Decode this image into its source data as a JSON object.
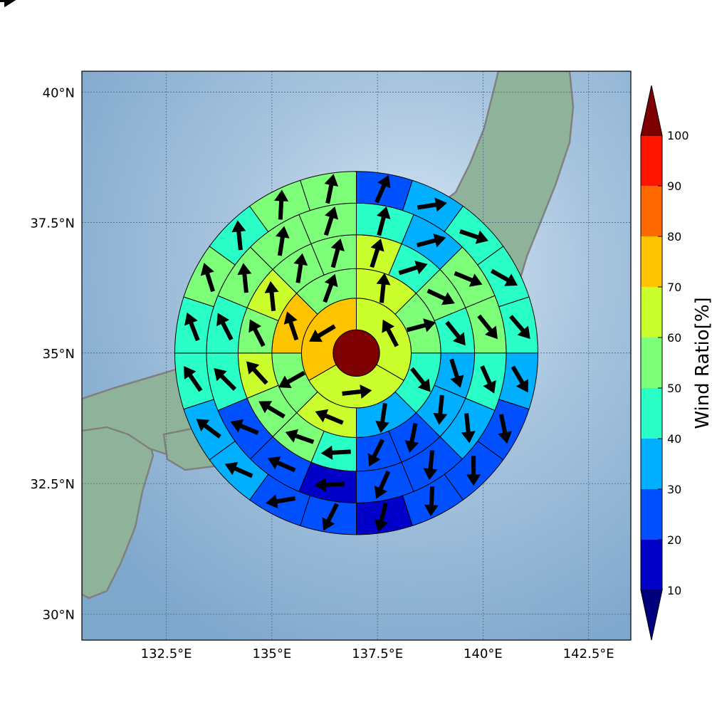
{
  "map": {
    "lon_range": [
      130.5,
      143.5
    ],
    "lat_range": [
      29.5,
      40.4
    ],
    "lon_ticks": [
      {
        "value": 132.5,
        "label": "132.5°E"
      },
      {
        "value": 135.0,
        "label": "135°E"
      },
      {
        "value": 137.5,
        "label": "137.5°E"
      },
      {
        "value": 140.0,
        "label": "140°E"
      },
      {
        "value": 142.5,
        "label": "142.5°E"
      }
    ],
    "lat_ticks": [
      {
        "value": 30.0,
        "label": "30°N"
      },
      {
        "value": 32.5,
        "label": "32.5°N"
      },
      {
        "value": 35.0,
        "label": "35°N"
      },
      {
        "value": 37.5,
        "label": "37.5°N"
      },
      {
        "value": 40.0,
        "label": "40°N"
      }
    ],
    "center": {
      "lon": 137.0,
      "lat": 35.0
    },
    "ring_radii_deg": [
      0.55,
      1.3,
      2.0,
      2.8,
      3.55,
      4.3
    ],
    "center_value": 100,
    "sector_start_deg": 90,
    "sector_direction": "clockwise",
    "rings": [
      {
        "values": [
          65,
          62,
          75
        ],
        "arrows": [
          [
            -0.5,
            0.95
          ],
          [
            0.9,
            0.1
          ],
          [
            -0.5,
            -0.3
          ]
        ]
      },
      {
        "values": [
          65,
          55,
          42,
          33,
          62,
          50,
          75,
          50
        ],
        "arrows": [
          [
            0.1,
            1
          ],
          [
            0.95,
            0.25
          ],
          [
            0.6,
            -0.75
          ],
          [
            -0.15,
            -1
          ],
          [
            -0.85,
            0.35
          ],
          [
            -0.8,
            -0.45
          ],
          [
            -0.3,
            0.9
          ],
          [
            0.35,
            0.95
          ]
        ]
      },
      {
        "values": [
          60,
          42,
          55,
          40,
          35,
          33,
          25,
          22,
          40,
          55,
          58,
          62,
          50,
          62,
          58,
          55
        ],
        "arrows": [
          [
            0.3,
            0.95
          ],
          [
            0.95,
            0.3
          ],
          [
            0.85,
            -0.4
          ],
          [
            0.6,
            -0.75
          ],
          [
            0.3,
            -0.95
          ],
          [
            -0.1,
            -1
          ],
          [
            -0.2,
            -0.98
          ],
          [
            -0.45,
            -0.89
          ],
          [
            -0.95,
            -0.05
          ],
          [
            -0.85,
            0.3
          ],
          [
            -0.75,
            0.45
          ],
          [
            -0.55,
            0.6
          ],
          [
            -0.45,
            0.88
          ],
          [
            -0.1,
            0.99
          ],
          [
            0.15,
            0.98
          ],
          [
            0.25,
            0.95
          ]
        ]
      },
      {
        "values": [
          40,
          35,
          55,
          52,
          42,
          38,
          25,
          20,
          18,
          22,
          22,
          40,
          45,
          50,
          55,
          52
        ],
        "arrows": [
          [
            0.25,
            0.95
          ],
          [
            0.95,
            0.25
          ],
          [
            0.85,
            -0.35
          ],
          [
            0.6,
            -0.75
          ],
          [
            0.4,
            -0.9
          ],
          [
            0.1,
            -0.99
          ],
          [
            -0.1,
            -0.99
          ],
          [
            -0.4,
            -0.9
          ],
          [
            -0.95,
            -0.05
          ],
          [
            -0.9,
            0.4
          ],
          [
            -0.85,
            0.35
          ],
          [
            -0.55,
            0.55
          ],
          [
            -0.45,
            0.88
          ],
          [
            -0.1,
            0.99
          ],
          [
            0.15,
            0.98
          ],
          [
            0.3,
            0.95
          ]
        ]
      },
      {
        "values": [
          25,
          32,
          45,
          48,
          45,
          38,
          22,
          20,
          22,
          18,
          22,
          25,
          32,
          38,
          40,
          42,
          50,
          45,
          55,
          50
        ],
        "arrows": [
          [
            0.4,
            0.9
          ],
          [
            0.95,
            0.15
          ],
          [
            0.9,
            -0.3
          ],
          [
            0.8,
            -0.45
          ],
          [
            0.6,
            -0.7
          ],
          [
            0.5,
            -0.85
          ],
          [
            0.2,
            -0.98
          ],
          [
            0.0,
            -1
          ],
          [
            -0.05,
            -1
          ],
          [
            -0.25,
            -0.97
          ],
          [
            -0.45,
            -0.89
          ],
          [
            -0.9,
            -0.15
          ],
          [
            -0.8,
            0.35
          ],
          [
            -0.8,
            0.6
          ],
          [
            -0.55,
            0.8
          ],
          [
            -0.35,
            0.9
          ],
          [
            -0.3,
            0.95
          ],
          [
            -0.1,
            0.99
          ],
          [
            0.05,
            0.99
          ],
          [
            0.2,
            0.98
          ]
        ]
      },
      {
        "values": [
          20,
          30,
          40,
          40,
          40,
          22,
          22,
          20,
          20,
          18,
          15,
          15,
          20,
          22,
          25,
          40,
          40,
          42,
          45,
          35
        ],
        "arrows": [
          [
            0.6,
            0.8
          ],
          [
            0.95,
            0.2
          ],
          [
            0.85,
            -0.35
          ],
          [
            0.75,
            -0.6
          ],
          [
            0.65,
            -0.75
          ],
          [
            0.5,
            -0.85
          ],
          [
            0.45,
            -0.9
          ],
          [
            0.2,
            -0.98
          ],
          [
            0.0,
            -1
          ],
          [
            -0.1,
            -1
          ],
          [
            -0.55,
            -0.85
          ],
          [
            -0.9,
            -0.2
          ],
          [
            -0.95,
            0.3
          ],
          [
            -0.85,
            0.4
          ],
          [
            -0.65,
            0.75
          ],
          [
            -0.5,
            0.85
          ],
          [
            -0.4,
            0.9
          ],
          [
            -0.3,
            0.95
          ],
          [
            -0.05,
            0.99
          ],
          [
            0.1,
            0.99
          ]
        ]
      }
    ]
  },
  "colorbar": {
    "title": "Wind Ratio[%]",
    "bounds": [
      10,
      20,
      30,
      40,
      50,
      60,
      70,
      80,
      90,
      100
    ],
    "tick_labels": [
      "10",
      "20",
      "30",
      "40",
      "50",
      "60",
      "70",
      "80",
      "90",
      "100"
    ],
    "colors": [
      "#0000c8",
      "#0050ff",
      "#00b0ff",
      "#29ffc6",
      "#7dff7a",
      "#caff2d",
      "#ffc400",
      "#ff6a00",
      "#ff1400"
    ],
    "under_color": "#00007f",
    "over_color": "#7f0000"
  },
  "colors": {
    "ocean_light": "#d9e8f5",
    "ocean_mid": "#a7c4de",
    "ocean_deep": "#7ea7cc",
    "land": "#8fb39a",
    "coast": "#808080",
    "grid": "#4a6a88"
  }
}
